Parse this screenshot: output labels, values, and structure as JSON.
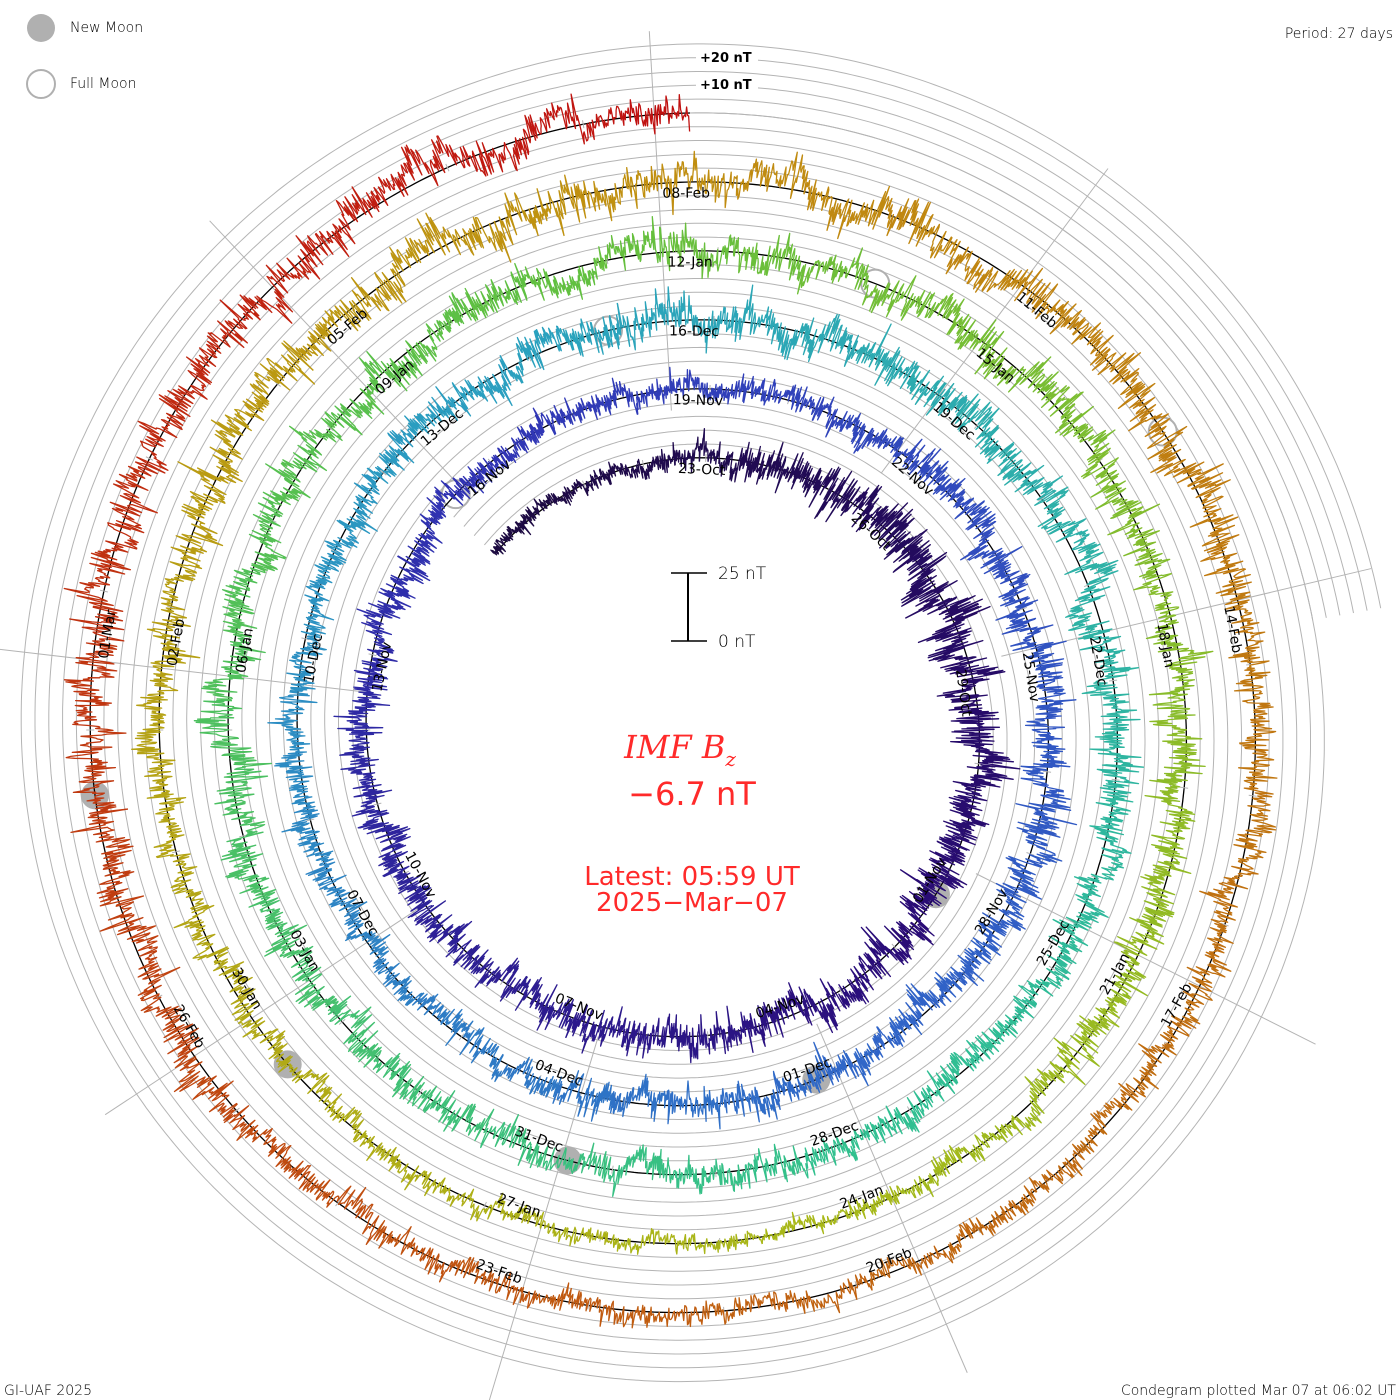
{
  "legend": {
    "new_moon": "New Moon",
    "full_moon": "Full Moon"
  },
  "period_label": "Period: 27 days",
  "ring_labels": {
    "plus20": "+20 nT",
    "plus10": "+10 nT"
  },
  "scale_bar": {
    "top": "25 nT",
    "bottom": "0 nT"
  },
  "center": {
    "title": "IMF B",
    "title_sub": "z",
    "value": "−6.7 nT",
    "latest": "Latest: 05:59 UT",
    "date": "2025−Mar−07"
  },
  "footer": {
    "left": "GI-UAF 2025",
    "right": "Condegram plotted Mar 07 at 06:02 UT"
  },
  "colors": {
    "zero_line": "#000000",
    "grid": "#b4b4b4",
    "moon": "#b0b0b0",
    "text_red": "#ff2a2a",
    "colormap": [
      "#1c0a40",
      "#2a0c78",
      "#3034b4",
      "#3064c8",
      "#2aa0c0",
      "#30c090",
      "#60c040",
      "#a8b818",
      "#c09010",
      "#c06010",
      "#c01010"
    ]
  },
  "chart_data": {
    "type": "line",
    "title": "IMF Bz",
    "layout": "condegram spiral",
    "period_days": 27,
    "units": "nT",
    "latest_value": -6.7,
    "days_shown": 138.6,
    "ring_step_nT": 5,
    "revolution_spacing_nT": 25,
    "date_labels": [
      "01-Mar",
      "26-Feb",
      "23-Feb",
      "20-Feb",
      "17-Feb",
      "14-Feb",
      "11-Feb",
      "08-Feb",
      "05-Feb",
      "02-Feb",
      "30-Jan",
      "27-Jan",
      "24-Jan",
      "21-Jan",
      "18-Jan",
      "15-Jan",
      "12-Jan",
      "09-Jan",
      "06-Jan",
      "03-Jan",
      "31-Dec",
      "28-Dec",
      "25-Dec",
      "22-Dec",
      "19-Dec",
      "16-Dec",
      "13-Dec",
      "10-Dec",
      "07-Dec",
      "04-Dec",
      "01-Dec",
      "28-Nov",
      "25-Nov",
      "22-Nov",
      "19-Nov",
      "16-Nov",
      "13-Nov",
      "10-Nov",
      "07-Nov",
      "04-Nov",
      "01-Nov",
      "29-Oct",
      "26-Oct",
      "23-Oct"
    ],
    "new_moons_days_before_latest": [
      7.22,
      36.73,
      66.31,
      95.99,
      125.72
    ],
    "full_moons_days_before_latest": [
      22.67,
      52.31,
      81.87,
      111.36
    ],
    "activity_nT_per_5_days": [
      2.5,
      8,
      6,
      5,
      5,
      4,
      4,
      6,
      5,
      4,
      4,
      6,
      6,
      4,
      5,
      6,
      5,
      6,
      6,
      2.5,
      4,
      6,
      6,
      6,
      3,
      4,
      7,
      5
    ]
  }
}
